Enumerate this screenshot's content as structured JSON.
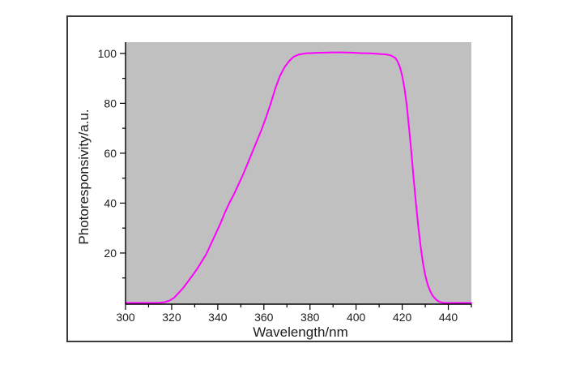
{
  "page": {
    "background_color": "#ffffff",
    "frame_border_color": "#3b3b3b"
  },
  "chart_data": {
    "type": "line",
    "title": "",
    "xlabel": "Wavelength/nm",
    "ylabel": "Photoresponsivity/a.u.",
    "xlim": [
      300,
      450
    ],
    "ylim": [
      -0.5,
      104.5
    ],
    "x_major_ticks": [
      300,
      320,
      340,
      360,
      380,
      400,
      420,
      440
    ],
    "x_minor_ticks": [
      310,
      330,
      350,
      370,
      390,
      410,
      430,
      450
    ],
    "y_major_ticks": [
      20,
      40,
      60,
      80,
      100
    ],
    "y_minor_ticks": [
      10,
      30,
      50,
      70,
      90
    ],
    "grid": false,
    "legend": "none",
    "plot_background": "#c0c0c0",
    "axis_color": "#000000",
    "text_color": "#1c1c1c",
    "tick_label_font_px": 14,
    "axis_title_font_px": 17,
    "series": [
      {
        "name": "photoresponsivity",
        "color": "#ff00ff",
        "width": 2,
        "points": [
          [
            300,
            0
          ],
          [
            304,
            0
          ],
          [
            308,
            0
          ],
          [
            312,
            0
          ],
          [
            315,
            0.1
          ],
          [
            317,
            0.3
          ],
          [
            319,
            0.9
          ],
          [
            321,
            2
          ],
          [
            323,
            4
          ],
          [
            325,
            6
          ],
          [
            327,
            8.5
          ],
          [
            329,
            11
          ],
          [
            331,
            13.5
          ],
          [
            333,
            16.5
          ],
          [
            335,
            19.5
          ],
          [
            337,
            23.5
          ],
          [
            339,
            27.5
          ],
          [
            341,
            31.5
          ],
          [
            343,
            36
          ],
          [
            345,
            40
          ],
          [
            347,
            43.5
          ],
          [
            349,
            47.5
          ],
          [
            351,
            51.5
          ],
          [
            353,
            56
          ],
          [
            355,
            60.5
          ],
          [
            357,
            65
          ],
          [
            359,
            69.5
          ],
          [
            361,
            74.5
          ],
          [
            363,
            80
          ],
          [
            365,
            86
          ],
          [
            367,
            91
          ],
          [
            369,
            94.5
          ],
          [
            371,
            97
          ],
          [
            373,
            98.7
          ],
          [
            375,
            99.5
          ],
          [
            378,
            100
          ],
          [
            382,
            100.2
          ],
          [
            386,
            100.3
          ],
          [
            390,
            100.4
          ],
          [
            394,
            100.4
          ],
          [
            398,
            100.3
          ],
          [
            402,
            100.1
          ],
          [
            406,
            100
          ],
          [
            410,
            99.8
          ],
          [
            413,
            99.6
          ],
          [
            415,
            99.2
          ],
          [
            417,
            98.2
          ],
          [
            418,
            96.8
          ],
          [
            419,
            94.5
          ],
          [
            420,
            91
          ],
          [
            421,
            86
          ],
          [
            422,
            79
          ],
          [
            423,
            70
          ],
          [
            424,
            60
          ],
          [
            425,
            49.5
          ],
          [
            426,
            39.5
          ],
          [
            427,
            30.5
          ],
          [
            428,
            22.5
          ],
          [
            429,
            16
          ],
          [
            430,
            11
          ],
          [
            431,
            7.5
          ],
          [
            432,
            5
          ],
          [
            433,
            3.2
          ],
          [
            434,
            2
          ],
          [
            435,
            1.1
          ],
          [
            436,
            0.5
          ],
          [
            437,
            0.2
          ],
          [
            438,
            0
          ],
          [
            441,
            0
          ],
          [
            445,
            0
          ],
          [
            450,
            0
          ]
        ]
      }
    ]
  }
}
